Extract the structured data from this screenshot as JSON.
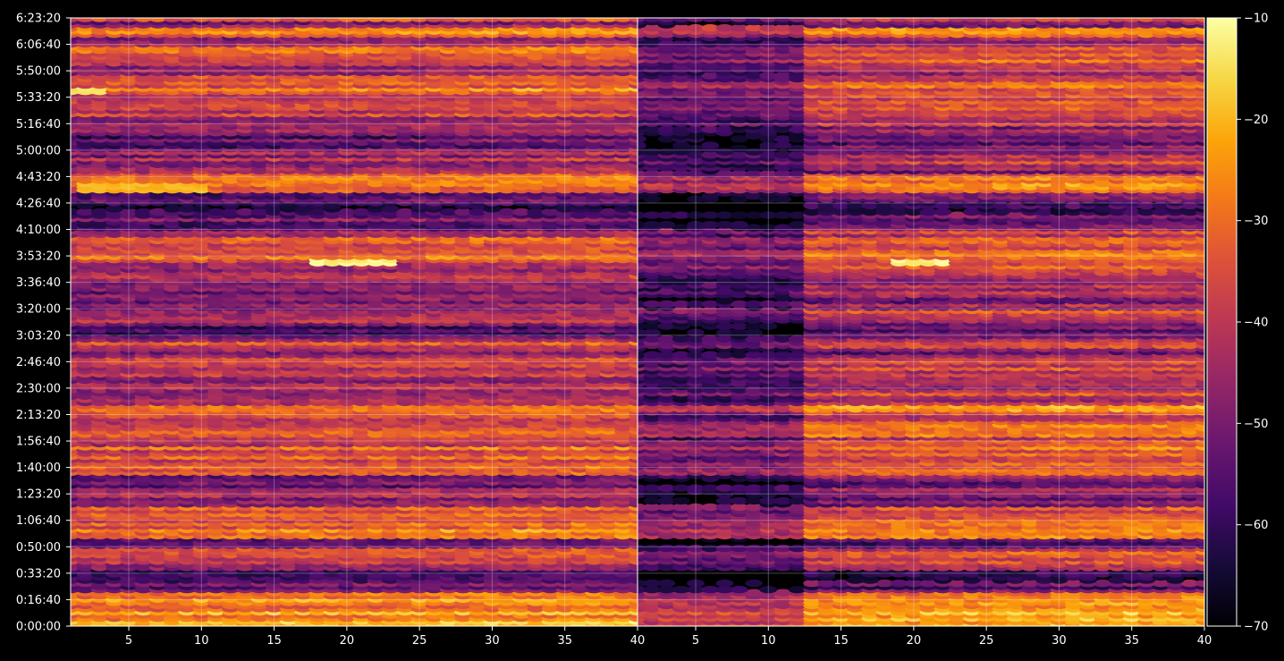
{
  "chart_data": {
    "type": "heatmap",
    "colormap": "inferno",
    "background": "#000000",
    "grid": true,
    "panels": [
      {
        "name": "",
        "xlim": [
          1,
          40
        ]
      },
      {
        "name": "",
        "xlim": [
          1,
          40
        ]
      }
    ],
    "ylim": [
      0,
      23000
    ],
    "y_units": "seconds (displayed as h:mm:ss)",
    "x_ticks": [
      5,
      10,
      15,
      20,
      25,
      30,
      35,
      40
    ],
    "x_tick_labels_left": [
      "5",
      "10",
      "15",
      "20",
      "25",
      "30",
      "35",
      "40"
    ],
    "x_tick_labels_right": [
      "5",
      "10",
      "15",
      "20",
      "25",
      "30",
      "35",
      "40"
    ],
    "y_ticks": [
      0,
      1000,
      2000,
      3000,
      4000,
      5000,
      6000,
      7000,
      8000,
      9000,
      10000,
      11000,
      12000,
      13000,
      14000,
      15000,
      16000,
      17000,
      18000,
      19000,
      20000,
      21000,
      22000,
      23000
    ],
    "y_tick_labels": [
      "0:00:00",
      "0:16:40",
      "0:33:20",
      "0:50:00",
      "1:06:40",
      "1:23:20",
      "1:40:00",
      "1:56:40",
      "2:13:20",
      "2:30:00",
      "2:46:40",
      "3:03:20",
      "3:20:00",
      "3:36:40",
      "3:53:20",
      "4:10:00",
      "4:26:40",
      "4:43:20",
      "5:00:00",
      "5:16:40",
      "5:33:20",
      "5:50:00",
      "6:06:40",
      "6:23:20"
    ],
    "colorbar": {
      "range": [
        -70,
        -10
      ],
      "ticks": [
        -10,
        -20,
        -30,
        -40,
        -50,
        -60,
        -70
      ],
      "tick_labels": [
        "−10",
        "−20",
        "−30",
        "−40",
        "−50",
        "−60",
        "−70"
      ]
    },
    "row_band_levels": [
      {
        "y": 500,
        "value": -25
      },
      {
        "y": 700,
        "value": -30
      },
      {
        "y": 1100,
        "value": -28
      },
      {
        "y": 1500,
        "value": -55
      },
      {
        "y": 1950,
        "value": -65
      },
      {
        "y": 2300,
        "value": -42
      },
      {
        "y": 2750,
        "value": -38
      },
      {
        "y": 3200,
        "value": -58
      },
      {
        "y": 3500,
        "value": -30
      },
      {
        "y": 3850,
        "value": -33
      },
      {
        "y": 4300,
        "value": -36
      },
      {
        "y": 4750,
        "value": -55
      },
      {
        "y": 5100,
        "value": -48
      },
      {
        "y": 5450,
        "value": -52
      },
      {
        "y": 5950,
        "value": -38
      },
      {
        "y": 6250,
        "value": -36
      },
      {
        "y": 6650,
        "value": -34
      },
      {
        "y": 7100,
        "value": -40
      },
      {
        "y": 7400,
        "value": -35
      },
      {
        "y": 7950,
        "value": -38
      },
      {
        "y": 8200,
        "value": -30
      },
      {
        "y": 8650,
        "value": -45
      },
      {
        "y": 8850,
        "value": -42
      },
      {
        "y": 9150,
        "value": -48
      },
      {
        "y": 9800,
        "value": -40
      },
      {
        "y": 10150,
        "value": -42
      },
      {
        "y": 10400,
        "value": -52
      },
      {
        "y": 10650,
        "value": -40
      },
      {
        "y": 11200,
        "value": -58
      },
      {
        "y": 11750,
        "value": -40
      },
      {
        "y": 12350,
        "value": -50
      },
      {
        "y": 12850,
        "value": -48
      },
      {
        "y": 13200,
        "value": -44
      },
      {
        "y": 13850,
        "value": -40
      },
      {
        "y": 14000,
        "value": -30
      },
      {
        "y": 14300,
        "value": -38
      },
      {
        "y": 14650,
        "value": -36
      },
      {
        "y": 14900,
        "value": -42
      },
      {
        "y": 15200,
        "value": -55
      },
      {
        "y": 15450,
        "value": -52
      },
      {
        "y": 15800,
        "value": -62
      },
      {
        "y": 16250,
        "value": -55
      },
      {
        "y": 16600,
        "value": -30
      },
      {
        "y": 16950,
        "value": -32
      },
      {
        "y": 17250,
        "value": -50
      },
      {
        "y": 17600,
        "value": -45
      },
      {
        "y": 17950,
        "value": -48
      },
      {
        "y": 18400,
        "value": -55
      },
      {
        "y": 18850,
        "value": -50
      },
      {
        "y": 19150,
        "value": -44
      },
      {
        "y": 19600,
        "value": -40
      },
      {
        "y": 20000,
        "value": -38
      },
      {
        "y": 20350,
        "value": -32
      },
      {
        "y": 20700,
        "value": -40
      },
      {
        "y": 21100,
        "value": -45
      },
      {
        "y": 21400,
        "value": -36
      },
      {
        "y": 21700,
        "value": -34
      },
      {
        "y": 22100,
        "value": -48
      },
      {
        "y": 22500,
        "value": -32
      },
      {
        "y": 22950,
        "value": -50
      },
      {
        "y": 23000,
        "value": -38
      }
    ],
    "right_panel_dark_region": {
      "x_range": [
        1,
        12
      ],
      "note": "lower intensity in first ~12 columns of right panel"
    },
    "hotspots": [
      {
        "panel": 0,
        "y": 13800,
        "x_range": [
          18,
          23
        ],
        "value": -12
      },
      {
        "panel": 1,
        "y": 13800,
        "x_range": [
          19,
          22
        ],
        "value": -12
      },
      {
        "panel": 0,
        "y": 20250,
        "x_range": [
          1,
          3
        ],
        "value": -15
      },
      {
        "panel": 0,
        "y": 16600,
        "x_range": [
          2,
          10
        ],
        "value": -20
      }
    ]
  }
}
